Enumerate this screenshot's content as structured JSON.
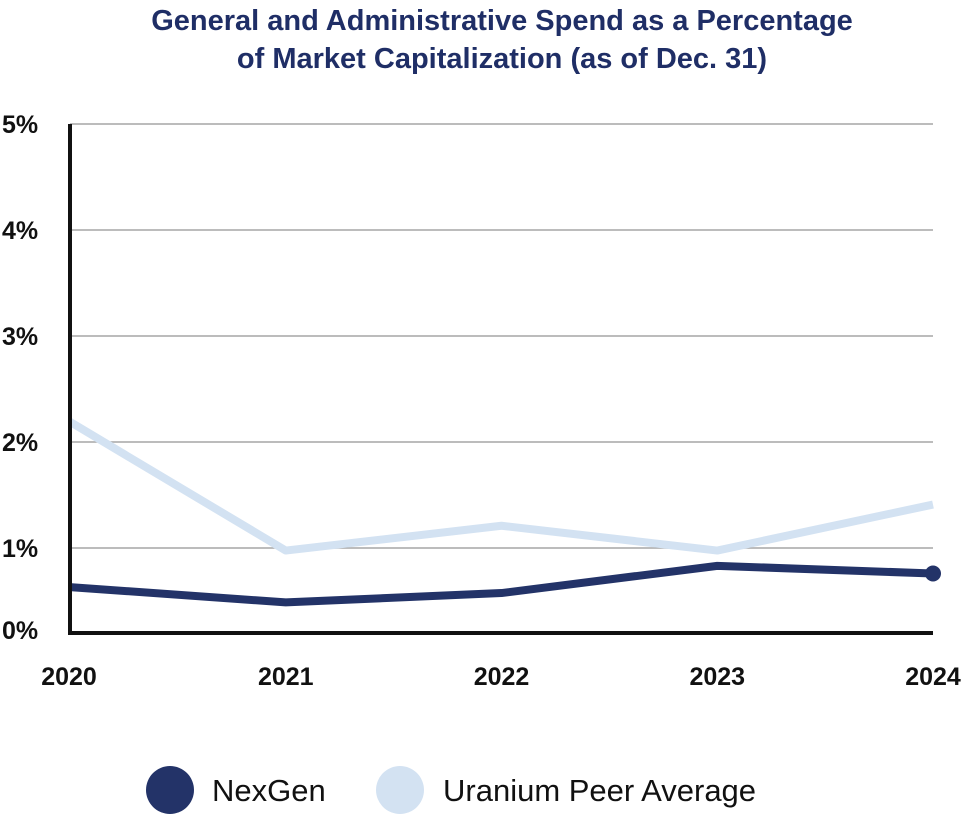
{
  "chart_data": {
    "type": "line",
    "title_line1": "General and Administrative Spend as a Percentage",
    "title_line2": "of Market Capitalization (as of Dec. 31)",
    "categories": [
      "2020",
      "2021",
      "2022",
      "2023",
      "2024"
    ],
    "y_ticks": [
      "0%",
      "1%",
      "2%",
      "3%",
      "4%",
      "5%"
    ],
    "y_tick_values": [
      0,
      1,
      2,
      3,
      4,
      5
    ],
    "ylim": [
      0,
      5
    ],
    "grid": true,
    "legend_position": "bottom",
    "series": [
      {
        "name": "NexGen",
        "values": [
          0.54,
          0.36,
          0.47,
          0.79,
          0.7
        ],
        "color": "#233368",
        "end_marker": true
      },
      {
        "name": "Uranium Peer Average",
        "values": [
          2.19,
          0.97,
          1.21,
          0.97,
          1.41
        ],
        "color": "#d3e2f2",
        "end_marker": false
      }
    ],
    "colors": {
      "title": "#1f2e66",
      "axis": "#111111",
      "grid": "#a6a6a6"
    }
  }
}
